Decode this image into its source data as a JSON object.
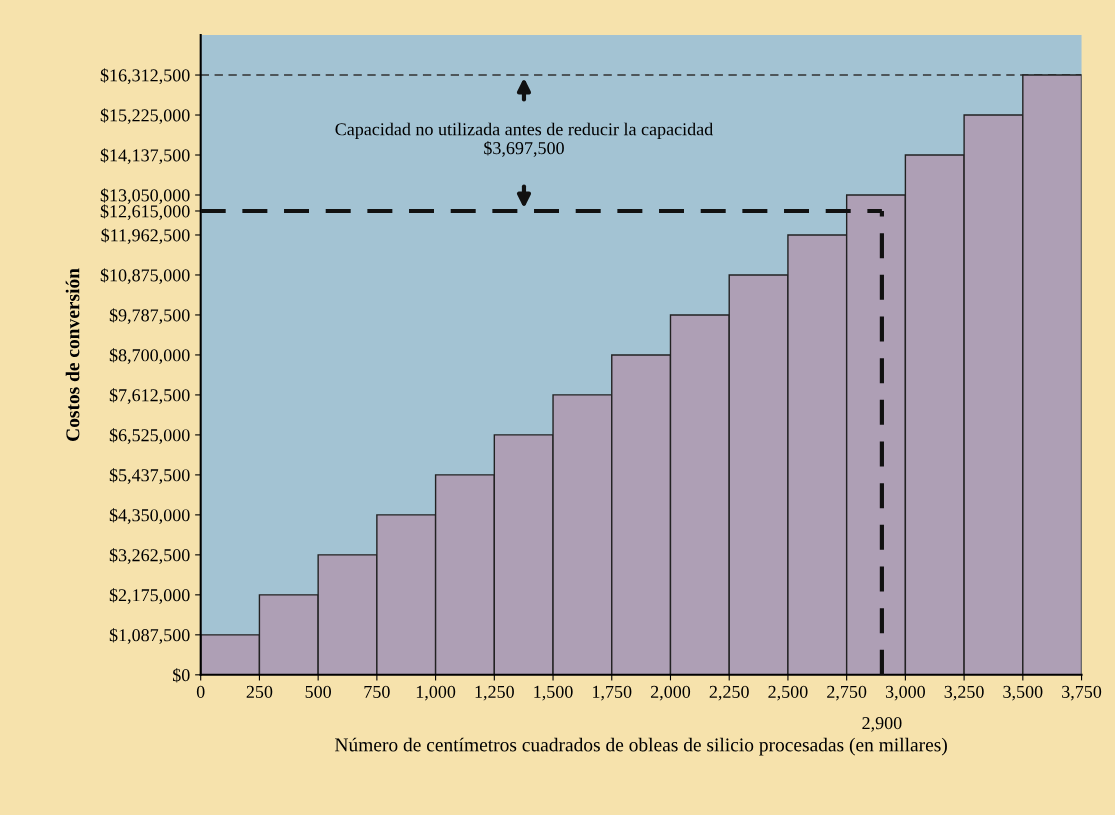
{
  "chart_data": {
    "type": "histogram",
    "xlabel": "Número de centímetros cuadrados de obleas de silicio procesadas (en millares)",
    "ylabel": "Costos de conversión",
    "bins": [
      0,
      250,
      500,
      750,
      1000,
      1250,
      1500,
      1750,
      2000,
      2250,
      2500,
      2750,
      3000,
      3250,
      3500,
      3750
    ],
    "values": [
      1087500,
      2175000,
      3262500,
      4350000,
      5437500,
      6525000,
      7612500,
      8700000,
      9787500,
      10875000,
      11962500,
      13050000,
      14137500,
      15225000,
      16312500
    ],
    "color": "#ae9fb5",
    "xlim": [
      0,
      3750
    ],
    "ylim": [
      0,
      17400000
    ],
    "xticks": [
      {
        "value": 0,
        "label": "0"
      },
      {
        "value": 250,
        "label": "250"
      },
      {
        "value": 500,
        "label": "500"
      },
      {
        "value": 750,
        "label": "750"
      },
      {
        "value": 1000,
        "label": "1,000"
      },
      {
        "value": 1250,
        "label": "1,250"
      },
      {
        "value": 1500,
        "label": "1,500"
      },
      {
        "value": 1750,
        "label": "1,750"
      },
      {
        "value": 2000,
        "label": "2,000"
      },
      {
        "value": 2250,
        "label": "2,250"
      },
      {
        "value": 2500,
        "label": "2,500"
      },
      {
        "value": 2750,
        "label": "2,750"
      },
      {
        "value": 3000,
        "label": "3,000"
      },
      {
        "value": 3250,
        "label": "3,250"
      },
      {
        "value": 3500,
        "label": "3,500"
      },
      {
        "value": 3750,
        "label": "3,750"
      }
    ],
    "yticks": [
      {
        "value": 0,
        "label": "$0"
      },
      {
        "value": 1087500,
        "label": "$1,087,500"
      },
      {
        "value": 2175000,
        "label": "$2,175,000"
      },
      {
        "value": 3262500,
        "label": "$3,262,500"
      },
      {
        "value": 4350000,
        "label": "$4,350,000"
      },
      {
        "value": 5437500,
        "label": "$5,437,500"
      },
      {
        "value": 6525000,
        "label": "$6,525,000"
      },
      {
        "value": 7612500,
        "label": "$7,612,500"
      },
      {
        "value": 8700000,
        "label": "$8,700,000"
      },
      {
        "value": 9787500,
        "label": "$9,787,500"
      },
      {
        "value": 10875000,
        "label": "$10,875,000"
      },
      {
        "value": 11962500,
        "label": "$11,962,500"
      },
      {
        "value": 12615000,
        "label": "$12,615,000"
      },
      {
        "value": 13050000,
        "label": "$13,050,000"
      },
      {
        "value": 14137500,
        "label": "$14,137,500"
      },
      {
        "value": 15225000,
        "label": "$15,225,000"
      },
      {
        "value": 16312500,
        "label": "$16,312,500"
      }
    ],
    "ref_lines": [
      {
        "axis": "y",
        "value": 16312500,
        "color": "#333333",
        "line_style": "dashed"
      },
      {
        "axis": "y",
        "value": 12615000,
        "color": "#111111",
        "line_style": "dashed"
      },
      {
        "axis": "x",
        "value": 2900,
        "label": "2,900",
        "color": "#111111",
        "line_style": "dashed"
      }
    ],
    "annotations": [
      "Capacidad no utilizada antes de reducir la capacidad\n$3,697,500"
    ],
    "grid": false
  }
}
